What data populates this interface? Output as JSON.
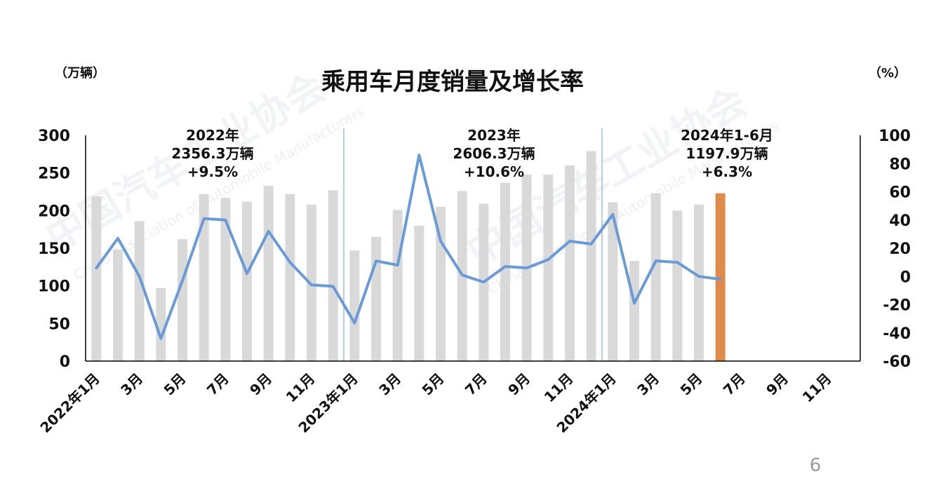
{
  "title": "乘用车月度销量及增长率",
  "left_unit": "（万辆）",
  "right_unit": "（%）",
  "page_number": "6",
  "watermark": {
    "cn": "中国汽车工业协会",
    "en": "China Association of Automobile Manufacturers"
  },
  "colors": {
    "bar": "#d9d9d9",
    "bar_highlight": "#e08a4c",
    "line": "#6a9bd6",
    "divider": "#6a9bd6",
    "axis": "#000000"
  },
  "annotations": [
    {
      "id": "y2022",
      "lines": [
        "2022年",
        "2356.3万辆",
        "+9.5%"
      ]
    },
    {
      "id": "y2023",
      "lines": [
        "2023年",
        "2606.3万辆",
        "+10.6%"
      ]
    },
    {
      "id": "y2024",
      "lines": [
        "2024年1-6月",
        "1197.9万辆",
        "+6.3%"
      ]
    }
  ],
  "chart_data": {
    "type": "bar",
    "categories": [
      "2022年1月",
      "2月",
      "3月",
      "4月",
      "5月",
      "6月",
      "7月",
      "8月",
      "9月",
      "10月",
      "11月",
      "12月",
      "2023年1月",
      "2月",
      "3月",
      "4月",
      "5月",
      "6月",
      "7月",
      "8月",
      "9月",
      "10月",
      "11月",
      "12月",
      "2024年1月",
      "2月",
      "3月",
      "4月",
      "5月",
      "6月",
      "7月",
      "8月",
      "9月",
      "10月",
      "11月",
      "12月"
    ],
    "x_tick_labels": [
      "2022年1月",
      "",
      "3月",
      "",
      "5月",
      "",
      "7月",
      "",
      "9月",
      "",
      "11月",
      "",
      "2023年1月",
      "",
      "3月",
      "",
      "5月",
      "",
      "7月",
      "",
      "9月",
      "",
      "11月",
      "",
      "2024年1月",
      "",
      "3月",
      "",
      "5月",
      "",
      "7月",
      "",
      "9月",
      "",
      "11月",
      ""
    ],
    "series": [
      {
        "name": "销量",
        "axis": "left",
        "values": [
          219,
          148,
          186,
          97,
          162,
          222,
          217,
          212,
          233,
          222,
          208,
          227,
          147,
          165,
          201,
          180,
          205,
          226,
          209,
          237,
          248,
          248,
          260,
          279,
          211,
          133,
          223,
          200,
          208,
          223,
          null,
          null,
          null,
          null,
          null,
          null
        ]
      },
      {
        "name": "增长率",
        "axis": "right",
        "values": [
          6,
          27,
          0,
          -44,
          -3,
          41,
          40,
          2,
          32,
          10,
          -6,
          -7,
          -33,
          11,
          8,
          86,
          25,
          1,
          -4,
          7,
          6,
          12,
          25,
          23,
          44,
          -19,
          11,
          10,
          0,
          -2,
          null,
          null,
          null,
          null,
          null,
          null
        ]
      }
    ],
    "highlight_index": 29,
    "year_dividers_after": [
      11,
      23
    ],
    "ylim_left": [
      0,
      300
    ],
    "yticks_left": [
      0,
      50,
      100,
      150,
      200,
      250,
      300
    ],
    "ylim_right": [
      -60,
      100
    ],
    "yticks_right": [
      -60,
      -40,
      -20,
      0,
      20,
      40,
      60,
      80,
      100
    ]
  }
}
